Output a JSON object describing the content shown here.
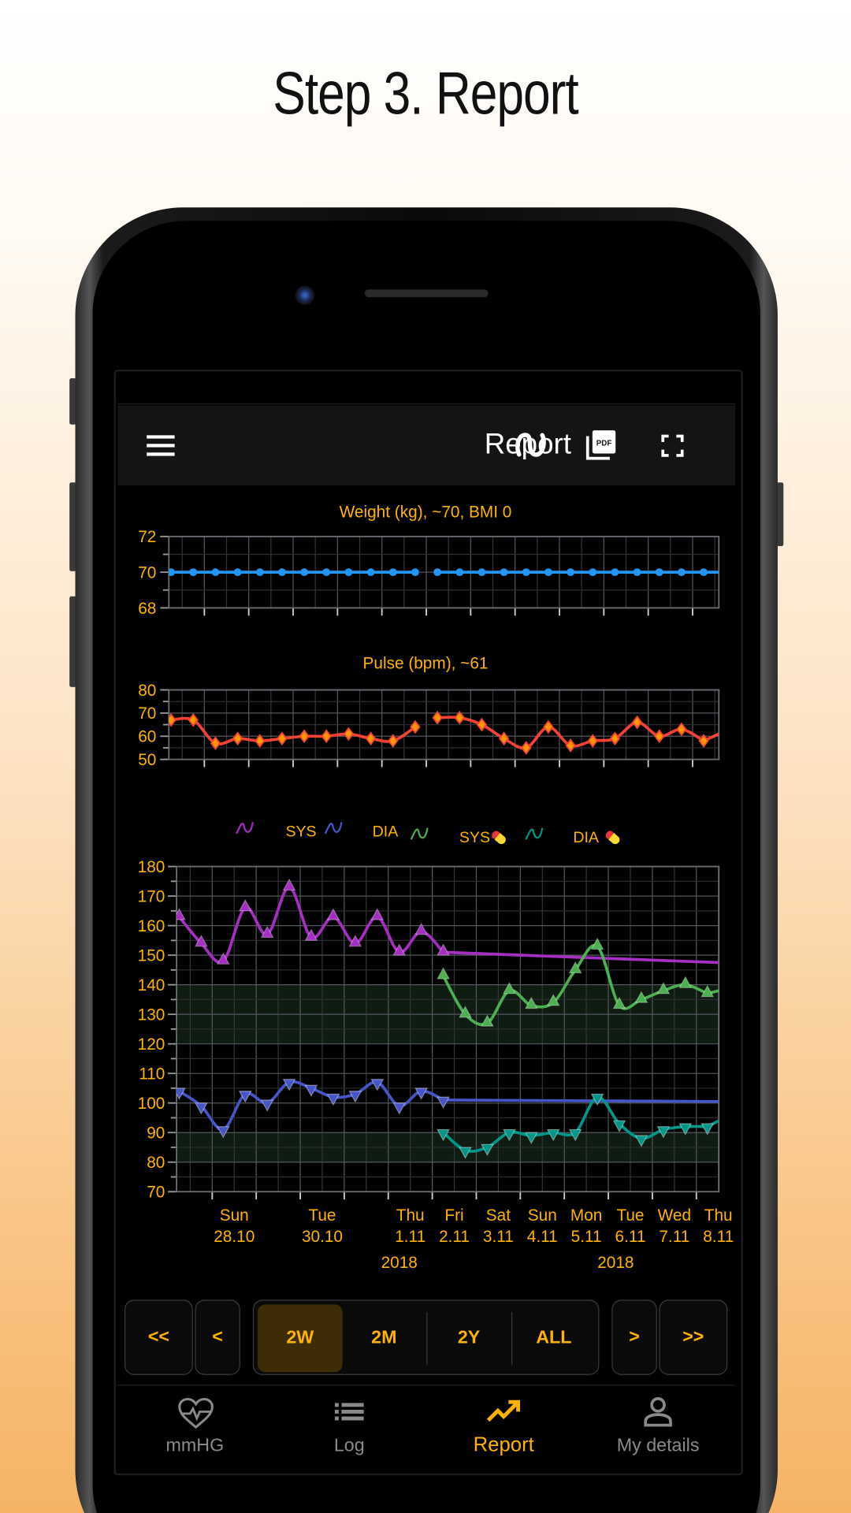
{
  "headline": "Step 3. Report",
  "appbar": {
    "title": "Report",
    "icons": [
      "menu-icon",
      "curve-smoothing-icon",
      "pdf-icon",
      "fullscreen-icon"
    ]
  },
  "colors": {
    "accent": "#FFB300",
    "weight": "#2196F3",
    "pulse_line": "#F44336",
    "pulse_marker": "#FF9800",
    "sys": "#A42FC0",
    "dia": "#4655C8",
    "sys_med": "#4CAF50",
    "dia_med": "#009688",
    "target_band": "#0F1C11"
  },
  "legend": [
    {
      "label": "SYS",
      "color": "#A42FC0",
      "medication": false
    },
    {
      "label": "DIA",
      "color": "#4655C8",
      "medication": false
    },
    {
      "label": "SYS",
      "color": "#4CAF50",
      "medication": true
    },
    {
      "label": "DIA",
      "color": "#009688",
      "medication": true
    }
  ],
  "chart_data": [
    {
      "type": "line",
      "title": "Weight (kg), ~70, BMI 0",
      "ylim": [
        68,
        72
      ],
      "yticks": [
        "68",
        "70",
        "72"
      ],
      "xlim": [
        "2018-10-27T04:48",
        "2018-11-08T14:10"
      ],
      "grid": true,
      "series": [
        {
          "color": "#2196F3",
          "marker": "circle",
          "segments": [
            {
              "x": [
                "2018-10-27T06:00",
                "2018-10-27T18:00",
                "2018-10-28T06:00",
                "2018-10-28T18:00",
                "2018-10-29T06:00",
                "2018-10-29T18:00",
                "2018-10-30T06:00",
                "2018-10-30T18:00",
                "2018-10-31T06:00",
                "2018-10-31T18:00",
                "2018-11-01T06:00",
                "2018-11-01T18:00"
              ],
              "y": [
                70,
                70,
                70,
                70,
                70,
                70,
                70,
                70,
                70,
                70,
                70,
                70
              ]
            },
            {
              "x": [
                "2018-11-02T06:00",
                "2018-11-02T18:00",
                "2018-11-03T06:00",
                "2018-11-03T18:00",
                "2018-11-04T06:00",
                "2018-11-04T18:00",
                "2018-11-05T06:00",
                "2018-11-05T18:00",
                "2018-11-06T06:00",
                "2018-11-06T18:00",
                "2018-11-07T06:00",
                "2018-11-07T18:00",
                "2018-11-08T06:00"
              ],
              "y": [
                70,
                70,
                70,
                70,
                70,
                70,
                70,
                70,
                70,
                70,
                70,
                70,
                70
              ],
              "right_edge_value": 70
            }
          ]
        }
      ]
    },
    {
      "type": "line",
      "title": "Pulse (bpm), ~61",
      "ylim": [
        50,
        80
      ],
      "yticks": [
        "50",
        "60",
        "70",
        "80"
      ],
      "xlim": [
        "2018-10-27T04:48",
        "2018-11-08T14:10"
      ],
      "grid": true,
      "series": [
        {
          "color": "#F44336",
          "marker_color": "#FF9800",
          "marker": "diamond",
          "segments": [
            {
              "x": [
                "2018-10-27T06:00",
                "2018-10-27T18:00",
                "2018-10-28T06:00",
                "2018-10-28T18:00",
                "2018-10-29T06:00",
                "2018-10-29T18:00",
                "2018-10-30T06:00",
                "2018-10-30T18:00",
                "2018-10-31T06:00",
                "2018-10-31T18:00",
                "2018-11-01T06:00",
                "2018-11-01T18:00"
              ],
              "y": [
                67,
                67,
                57,
                59,
                58,
                59,
                60,
                60,
                61,
                59,
                58,
                64
              ]
            },
            {
              "x": [
                "2018-11-02T06:00",
                "2018-11-02T18:00",
                "2018-11-03T06:00",
                "2018-11-03T18:00",
                "2018-11-04T06:00",
                "2018-11-04T18:00",
                "2018-11-05T06:00",
                "2018-11-05T18:00",
                "2018-11-06T06:00",
                "2018-11-06T18:00",
                "2018-11-07T06:00",
                "2018-11-07T18:00",
                "2018-11-08T06:00"
              ],
              "y": [
                68,
                68,
                65,
                59,
                55,
                64,
                56,
                58,
                59,
                66,
                60,
                63,
                58
              ],
              "right_edge_value": 61
            }
          ]
        }
      ]
    },
    {
      "type": "line",
      "ylim": [
        70,
        180
      ],
      "yticks": [
        "70",
        "80",
        "90",
        "100",
        "110",
        "120",
        "130",
        "140",
        "150",
        "160",
        "170",
        "180"
      ],
      "xlim": [
        "2018-10-27T04:34",
        "2018-11-08T12:14"
      ],
      "grid": true,
      "target_bands": [
        [
          120,
          140
        ],
        [
          80,
          90
        ]
      ],
      "xtick_labels": [
        {
          "day": "Sun",
          "date": "28.10",
          "x": "2018-10-28T12:00"
        },
        {
          "day": "Tue",
          "date": "30.10",
          "x": "2018-10-30T12:00"
        },
        {
          "day": "Thu",
          "date": "1.11",
          "x": "2018-11-01T12:00"
        },
        {
          "day": "Fri",
          "date": "2.11",
          "x": "2018-11-02T12:00"
        },
        {
          "day": "Sat",
          "date": "3.11",
          "x": "2018-11-03T12:00"
        },
        {
          "day": "Sun",
          "date": "4.11",
          "x": "2018-11-04T12:00"
        },
        {
          "day": "Mon",
          "date": "5.11",
          "x": "2018-11-05T12:00"
        },
        {
          "day": "Tue",
          "date": "6.11",
          "x": "2018-11-06T12:00"
        },
        {
          "day": "Wed",
          "date": "7.11",
          "x": "2018-11-07T12:00"
        },
        {
          "day": "Thu",
          "date": "8.11",
          "x": "2018-11-08T12:00"
        }
      ],
      "year_labels": [
        {
          "text": "2018",
          "x": "2018-11-01T06:00"
        },
        {
          "text": "2018",
          "x": "2018-11-06T04:00"
        }
      ],
      "series": [
        {
          "name": "SYS",
          "color": "#A42FC0",
          "marker": "triangle-up",
          "segments": [
            {
              "x": [
                "2018-10-27T06:00",
                "2018-10-27T18:00",
                "2018-10-28T06:00",
                "2018-10-28T18:00",
                "2018-10-29T06:00",
                "2018-10-29T18:00",
                "2018-10-30T06:00",
                "2018-10-30T18:00",
                "2018-10-31T06:00",
                "2018-10-31T18:00",
                "2018-11-01T06:00",
                "2018-11-01T18:00",
                "2018-11-02T06:00"
              ],
              "y": [
                163,
                154,
                148,
                166,
                157,
                173,
                156,
                163,
                154,
                163,
                151,
                158,
                151
              ],
              "right_edge_value": 147.5
            }
          ]
        },
        {
          "name": "DIA",
          "color": "#4655C8",
          "marker": "triangle-down",
          "segments": [
            {
              "x": [
                "2018-10-27T06:00",
                "2018-10-27T18:00",
                "2018-10-28T06:00",
                "2018-10-28T18:00",
                "2018-10-29T06:00",
                "2018-10-29T18:00",
                "2018-10-30T06:00",
                "2018-10-30T18:00",
                "2018-10-31T06:00",
                "2018-10-31T18:00",
                "2018-11-01T06:00",
                "2018-11-01T18:00",
                "2018-11-02T06:00"
              ],
              "y": [
                104,
                99,
                91,
                103,
                100,
                107,
                105,
                102,
                103,
                107,
                99,
                104,
                101
              ],
              "right_edge_value": 100.5
            }
          ]
        },
        {
          "name": "SYS",
          "medication": true,
          "color": "#4CAF50",
          "marker": "triangle-up",
          "segments": [
            {
              "x": [
                "2018-11-02T06:00",
                "2018-11-02T18:00",
                "2018-11-03T06:00",
                "2018-11-03T18:00",
                "2018-11-04T06:00",
                "2018-11-04T18:00",
                "2018-11-05T06:00",
                "2018-11-05T18:00",
                "2018-11-06T06:00",
                "2018-11-06T18:00",
                "2018-11-07T06:00",
                "2018-11-07T18:00",
                "2018-11-08T06:00"
              ],
              "y": [
                143,
                130,
                127,
                138,
                133,
                134,
                145,
                153,
                133,
                135,
                138,
                140,
                137
              ],
              "right_edge_value": 138
            }
          ]
        },
        {
          "name": "DIA",
          "medication": true,
          "color": "#009688",
          "marker": "triangle-down",
          "segments": [
            {
              "x": [
                "2018-11-02T06:00",
                "2018-11-02T18:00",
                "2018-11-03T06:00",
                "2018-11-03T18:00",
                "2018-11-04T06:00",
                "2018-11-04T18:00",
                "2018-11-05T06:00",
                "2018-11-05T18:00",
                "2018-11-06T06:00",
                "2018-11-06T18:00",
                "2018-11-07T06:00",
                "2018-11-07T18:00",
                "2018-11-08T06:00"
              ],
              "y": [
                90,
                84,
                85,
                90,
                89,
                90,
                90,
                102,
                93,
                88,
                91,
                92,
                92
              ],
              "right_edge_value": 94
            }
          ]
        }
      ]
    }
  ],
  "range_controls": {
    "first": "<<",
    "prev": "<",
    "ranges": [
      "2W",
      "2M",
      "2Y",
      "ALL"
    ],
    "selected": "2W",
    "next": ">",
    "last": ">>"
  },
  "bottom_nav": [
    {
      "label": "mmHG",
      "icon": "heart-pulse-icon",
      "active": false
    },
    {
      "label": "Log",
      "icon": "list-icon",
      "active": false
    },
    {
      "label": "Report",
      "icon": "trending-up-icon",
      "active": true
    },
    {
      "label": "My details",
      "icon": "person-icon",
      "active": false
    }
  ]
}
